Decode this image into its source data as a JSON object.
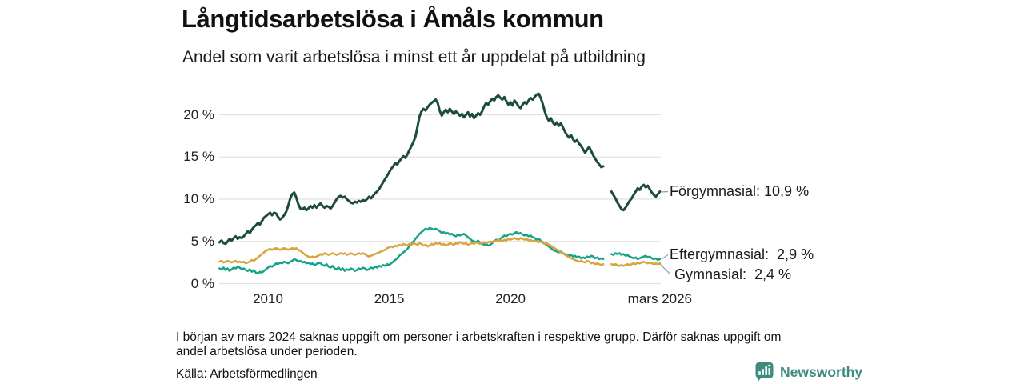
{
  "header": {
    "title": "Långtidsarbetslösa i Åmåls kommun",
    "subtitle": "Andel som varit arbetslösa i minst ett år uppdelat på utbildning"
  },
  "chart_data": {
    "type": "line",
    "title": "Långtidsarbetslösa i Åmåls kommun",
    "subtitle": "Andel som varit arbetslösa i minst ett år uppdelat på utbildning",
    "unit": "%",
    "x_start_year": 2008,
    "x_step_months": 1,
    "x_end": "mars 2026",
    "grid": "horizontal",
    "legend_position": "end-of-line-labels",
    "ylim": [
      0,
      23
    ],
    "y_ticks": [
      {
        "label": "0 %",
        "value": 0
      },
      {
        "label": "5 %",
        "value": 5
      },
      {
        "label": "10 %",
        "value": 10
      },
      {
        "label": "15 %",
        "value": 15
      },
      {
        "label": "20 %",
        "value": 20
      }
    ],
    "x_ticks": [
      {
        "label": "2010",
        "t": 2010
      },
      {
        "label": "2015",
        "t": 2015
      },
      {
        "label": "2020",
        "t": 2020
      },
      {
        "label": "mars 2026",
        "t": 2026.1667
      }
    ],
    "gap_note": "värden saknas dec 2023–feb 2024",
    "series": [
      {
        "name": "Förgymnasial",
        "end_label": "Förgymnasial: 10,9 %",
        "end_value": "10,9 %",
        "color": "#1d4b41",
        "width": 3,
        "values": [
          4.9,
          5.1,
          4.8,
          4.7,
          5.0,
          5.3,
          5.1,
          5.4,
          5.6,
          5.3,
          5.5,
          5.4,
          5.6,
          5.9,
          6.2,
          6.0,
          6.4,
          6.7,
          6.9,
          7.2,
          7.0,
          7.4,
          7.8,
          8.0,
          8.2,
          8.4,
          8.1,
          8.4,
          8.3,
          7.9,
          7.6,
          7.8,
          8.1,
          8.5,
          9.2,
          10.1,
          10.6,
          10.8,
          10.2,
          9.4,
          8.9,
          8.8,
          9.0,
          8.7,
          8.9,
          9.2,
          9.0,
          9.3,
          9.0,
          9.3,
          9.5,
          9.2,
          9.0,
          9.2,
          9.1,
          8.9,
          9.2,
          9.6,
          10.0,
          10.3,
          10.4,
          10.2,
          10.3,
          10.0,
          9.8,
          9.6,
          9.5,
          9.7,
          9.6,
          9.8,
          9.7,
          9.9,
          9.8,
          10.0,
          10.3,
          10.1,
          10.4,
          10.7,
          10.9,
          11.2,
          11.6,
          12.0,
          12.4,
          12.8,
          13.2,
          13.6,
          13.9,
          14.3,
          14.1,
          14.5,
          14.8,
          15.1,
          14.9,
          15.3,
          15.8,
          16.3,
          16.8,
          17.4,
          18.6,
          19.8,
          20.4,
          20.7,
          20.5,
          20.9,
          21.2,
          21.4,
          21.6,
          21.8,
          21.4,
          20.5,
          19.9,
          20.3,
          20.6,
          20.3,
          20.7,
          20.4,
          20.1,
          20.4,
          20.2,
          19.9,
          20.1,
          19.7,
          20.0,
          20.3,
          19.8,
          20.1,
          19.6,
          19.9,
          20.2,
          20.0,
          20.4,
          21.0,
          21.4,
          21.2,
          21.6,
          21.9,
          21.7,
          22.1,
          22.3,
          22.0,
          21.8,
          22.1,
          21.6,
          21.2,
          21.5,
          21.1,
          21.7,
          21.4,
          21.0,
          20.8,
          21.2,
          21.5,
          21.3,
          21.7,
          22.0,
          21.8,
          22.1,
          22.4,
          22.5,
          22.0,
          21.3,
          20.4,
          19.7,
          19.3,
          19.6,
          19.1,
          18.8,
          19.1,
          18.7,
          19.0,
          18.5,
          18.0,
          17.6,
          17.3,
          17.6,
          17.1,
          16.8,
          17.0,
          16.6,
          16.3,
          15.9,
          15.5,
          15.9,
          16.2,
          15.7,
          15.2,
          14.8,
          14.4,
          14.1,
          13.8,
          13.9,
          null,
          null,
          null,
          10.9,
          10.5,
          10.1,
          9.6,
          9.2,
          8.8,
          8.7,
          9.0,
          9.4,
          9.8,
          10.1,
          10.5,
          10.9,
          11.3,
          11.1,
          11.5,
          11.7,
          11.4,
          11.6,
          11.2,
          10.8,
          10.5,
          10.3,
          10.6,
          10.9
        ]
      },
      {
        "name": "Eftergymnasial",
        "end_label": "Eftergymnasial:  2,9 %",
        "end_value": "2,9 %",
        "color": "#16a189",
        "width": 2.5,
        "values": [
          1.8,
          1.7,
          1.9,
          1.6,
          1.8,
          1.5,
          1.7,
          1.9,
          1.8,
          2.0,
          1.9,
          1.7,
          1.8,
          1.6,
          1.5,
          1.7,
          1.4,
          1.6,
          1.3,
          1.2,
          1.4,
          1.3,
          1.5,
          1.7,
          1.9,
          2.1,
          2.0,
          2.2,
          2.4,
          2.3,
          2.5,
          2.4,
          2.6,
          2.5,
          2.4,
          2.6,
          2.7,
          2.9,
          2.8,
          2.6,
          2.7,
          2.5,
          2.6,
          2.4,
          2.5,
          2.3,
          2.4,
          2.2,
          2.3,
          2.5,
          2.4,
          2.2,
          2.1,
          2.3,
          2.0,
          1.9,
          2.1,
          1.8,
          1.7,
          1.9,
          1.6,
          1.8,
          1.5,
          1.7,
          1.6,
          1.8,
          1.7,
          1.5,
          1.6,
          1.8,
          1.7,
          1.9,
          1.8,
          1.6,
          1.7,
          1.9,
          1.8,
          2.0,
          1.9,
          2.1,
          2.0,
          2.2,
          2.1,
          2.3,
          2.2,
          2.4,
          2.6,
          2.8,
          3.0,
          3.3,
          3.5,
          3.7,
          3.9,
          4.1,
          4.4,
          4.7,
          5.0,
          5.3,
          5.6,
          5.9,
          6.1,
          6.3,
          6.5,
          6.4,
          6.6,
          6.5,
          6.4,
          6.5,
          6.4,
          6.2,
          6.0,
          6.1,
          5.9,
          6.0,
          5.8,
          5.9,
          5.7,
          5.6,
          5.8,
          5.7,
          5.8,
          5.9,
          5.7,
          5.5,
          5.3,
          5.1,
          5.0,
          4.9,
          5.1,
          4.8,
          4.7,
          4.6,
          4.7,
          4.5,
          4.6,
          4.8,
          5.0,
          5.2,
          5.1,
          5.3,
          5.5,
          5.7,
          5.6,
          5.8,
          5.9,
          5.8,
          6.0,
          6.1,
          5.9,
          6.0,
          5.8,
          5.7,
          5.8,
          5.6,
          5.7,
          5.5,
          5.4,
          5.2,
          5.3,
          5.1,
          4.9,
          4.7,
          4.6,
          4.4,
          4.2,
          4.0,
          3.9,
          3.8,
          3.7,
          3.8,
          3.6,
          3.5,
          3.4,
          3.3,
          3.4,
          3.2,
          3.3,
          3.1,
          3.2,
          3.0,
          3.1,
          3.0,
          3.2,
          3.1,
          3.3,
          3.2,
          3.0,
          3.1,
          2.9,
          3.0,
          2.9,
          null,
          null,
          null,
          3.5,
          3.4,
          3.6,
          3.5,
          3.6,
          3.4,
          3.5,
          3.3,
          3.4,
          3.2,
          3.1,
          3.0,
          3.1,
          2.9,
          3.0,
          3.1,
          3.2,
          3.3,
          3.1,
          3.2,
          3.0,
          2.9,
          3.0,
          2.8,
          2.9
        ]
      },
      {
        "name": "Gymnasial",
        "end_label": "Gymnasial:  2,4 %",
        "end_value": "2,4 %",
        "color": "#d8a43e",
        "width": 2.5,
        "values": [
          2.6,
          2.7,
          2.5,
          2.6,
          2.7,
          2.6,
          2.5,
          2.6,
          2.7,
          2.5,
          2.6,
          2.5,
          2.6,
          2.4,
          2.5,
          2.6,
          2.8,
          2.7,
          2.9,
          3.1,
          3.3,
          3.5,
          3.7,
          3.9,
          4.0,
          4.1,
          4.0,
          4.1,
          4.2,
          4.1,
          4.0,
          4.1,
          4.2,
          4.1,
          4.0,
          4.1,
          4.2,
          4.1,
          4.2,
          4.0,
          3.9,
          3.7,
          3.5,
          3.3,
          3.2,
          3.1,
          3.2,
          3.1,
          3.2,
          3.3,
          3.5,
          3.4,
          3.6,
          3.5,
          3.4,
          3.5,
          3.6,
          3.5,
          3.4,
          3.5,
          3.6,
          3.5,
          3.6,
          3.4,
          3.5,
          3.6,
          3.5,
          3.4,
          3.5,
          3.6,
          3.5,
          3.6,
          3.5,
          3.3,
          3.2,
          3.3,
          3.4,
          3.5,
          3.6,
          3.7,
          3.8,
          3.9,
          4.0,
          4.2,
          4.3,
          4.4,
          4.3,
          4.5,
          4.4,
          4.6,
          4.5,
          4.7,
          4.6,
          4.5,
          4.7,
          4.6,
          4.8,
          4.7,
          4.6,
          4.8,
          4.7,
          4.5,
          4.6,
          4.4,
          4.5,
          4.7,
          4.6,
          4.8,
          4.7,
          4.8,
          4.6,
          4.7,
          4.5,
          4.6,
          4.8,
          4.7,
          4.6,
          4.8,
          4.7,
          4.9,
          4.8,
          4.7,
          4.8,
          4.6,
          4.7,
          4.8,
          4.7,
          4.9,
          4.8,
          4.7,
          4.8,
          4.9,
          4.8,
          4.9,
          5.0,
          4.9,
          5.1,
          5.0,
          5.2,
          5.1,
          5.0,
          5.2,
          5.1,
          5.3,
          5.2,
          5.3,
          5.4,
          5.3,
          5.2,
          5.4,
          5.3,
          5.2,
          5.3,
          5.1,
          5.2,
          5.0,
          5.1,
          5.0,
          4.9,
          5.0,
          4.8,
          4.7,
          4.8,
          4.6,
          4.5,
          4.3,
          4.2,
          4.0,
          3.9,
          3.7,
          3.6,
          3.4,
          3.3,
          3.1,
          3.0,
          2.9,
          2.8,
          2.7,
          2.6,
          2.7,
          2.6,
          2.5,
          2.7,
          2.6,
          2.4,
          2.5,
          2.3,
          2.4,
          2.3,
          2.2,
          2.3,
          null,
          null,
          null,
          2.3,
          2.2,
          2.3,
          2.2,
          2.1,
          2.2,
          2.1,
          2.2,
          2.3,
          2.2,
          2.3,
          2.4,
          2.3,
          2.5,
          2.4,
          2.5,
          2.6,
          2.5,
          2.4,
          2.5,
          2.4,
          2.3,
          2.4,
          2.3,
          2.4
        ]
      }
    ]
  },
  "footnote": {
    "lines": [
      "I början av mars 2024 saknas uppgift om personer i arbetskraften i respektive grupp. Därför saknas uppgift om",
      "andel arbetslösa under perioden."
    ]
  },
  "source": "Källa: Arbetsförmedlingen",
  "branding": {
    "name": "Newsworthy",
    "color": "#3d8b81",
    "icon": "bar-chart-speech-bubble"
  },
  "colors": {
    "grid": "#e2e2e2",
    "leader": "#999999",
    "text": "#1a1a1a"
  }
}
